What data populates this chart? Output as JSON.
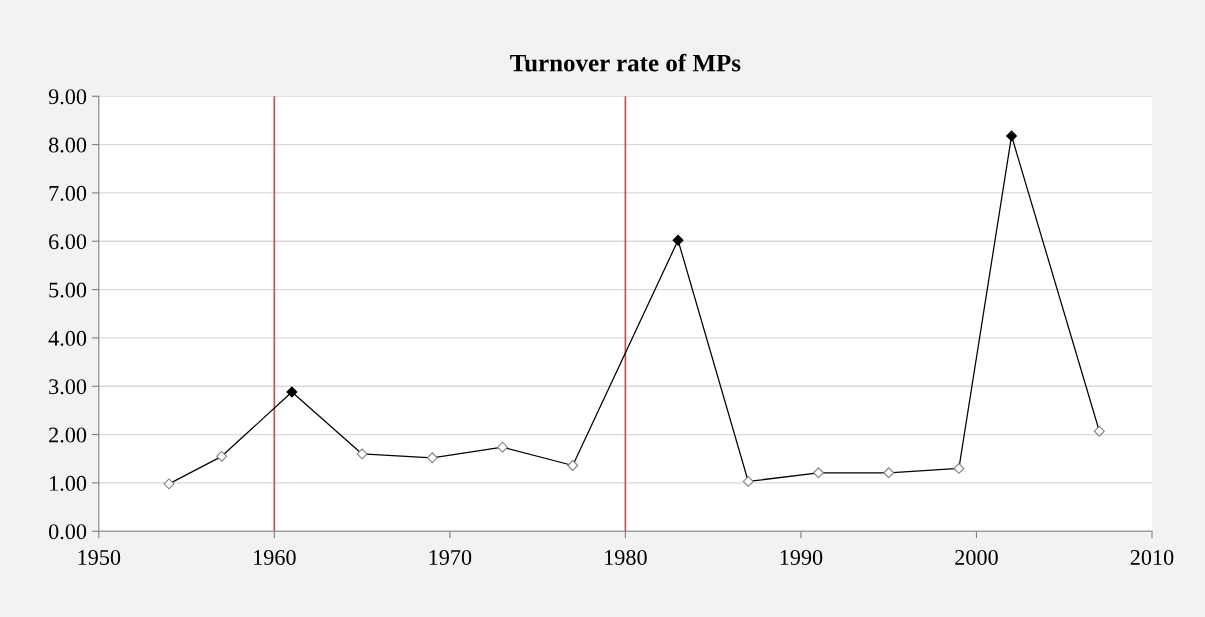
{
  "chart_data": {
    "type": "line",
    "title": "Turnover rate of MPs",
    "x": [
      1954,
      1957,
      1961,
      1965,
      1969,
      1973,
      1977,
      1983,
      1987,
      1991,
      1995,
      1999,
      2002,
      2007
    ],
    "series": [
      {
        "color": "#000000",
        "values": [
          0.98,
          1.55,
          2.88,
          1.6,
          1.52,
          1.74,
          1.36,
          6.02,
          1.03,
          1.21,
          1.21,
          1.3,
          8.18,
          2.07
        ],
        "colors": [
          "#ffffff",
          "#ffffff",
          "#000000",
          "#ffffff",
          "#ffffff",
          "#ffffff",
          "#ffffff",
          "#000000",
          "#ffffff",
          "#ffffff",
          "#ffffff",
          "#ffffff",
          "#000000",
          "#ffffff"
        ]
      }
    ],
    "xlim": [
      1950,
      2010
    ],
    "xticks": [
      1950,
      1960,
      1970,
      1980,
      1990,
      2000,
      2010
    ],
    "ylim": [
      0,
      9
    ],
    "yticks": [
      {
        "value": 0,
        "label": "0.00"
      },
      {
        "value": 1,
        "label": "1.00"
      },
      {
        "value": 2,
        "label": "2.00"
      },
      {
        "value": 3,
        "label": "3.00"
      },
      {
        "value": 4,
        "label": "4.00"
      },
      {
        "value": 5,
        "label": "5.00"
      },
      {
        "value": 6,
        "label": "6.00"
      },
      {
        "value": 7,
        "label": "7.00"
      },
      {
        "value": 8,
        "label": "8.00"
      },
      {
        "value": 9,
        "label": "9.00"
      }
    ],
    "ref_lines": [
      {
        "axis": "x",
        "value": 1960,
        "color": "#c0504d"
      },
      {
        "axis": "x",
        "value": 1980,
        "color": "#c0504d"
      }
    ],
    "grid": "y",
    "marker": "diamond",
    "line_style": "solid",
    "legend": false
  }
}
